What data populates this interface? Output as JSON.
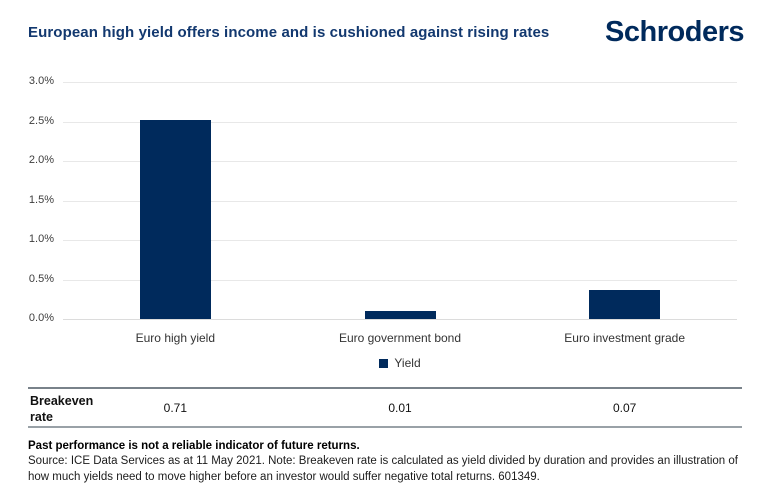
{
  "header": {
    "title": "European high yield offers income and is cushioned against rising rates",
    "logo": "Schroders"
  },
  "chart_data": {
    "type": "bar",
    "title": "European high yield offers income and is cushioned against rising rates",
    "categories": [
      "Euro high yield",
      "Euro government bond",
      "Euro investment grade"
    ],
    "series": [
      {
        "name": "Yield",
        "values": [
          2.52,
          0.1,
          0.37
        ]
      }
    ],
    "xlabel": "",
    "ylabel": "",
    "ylim": [
      0,
      3.0
    ],
    "ytick_labels": [
      "3.0%",
      "2.5%",
      "2.0%",
      "1.5%",
      "1.0%",
      "0.5%",
      "0.0%"
    ],
    "grid": true,
    "legend_position": "bottom-center",
    "bar_color": "#002a5c",
    "breakeven_row": {
      "label": "Breakeven rate",
      "values": [
        "0.71",
        "0.01",
        "0.07"
      ]
    }
  },
  "footer": {
    "disclaimer": "Past performance is not a reliable indicator of future returns.",
    "source_lines": [
      "Source: ICE Data Services as at 11 May 2021. Note: Breakeven rate is calculated as yield divided by duration and provides an illustration of",
      "how much yields need to move higher before an investor would suffer negative total returns. 601349."
    ]
  },
  "colors": {
    "brand_navy": "#002a5c",
    "title_navy": "#12386f",
    "gridline": "#e8e8e8"
  }
}
